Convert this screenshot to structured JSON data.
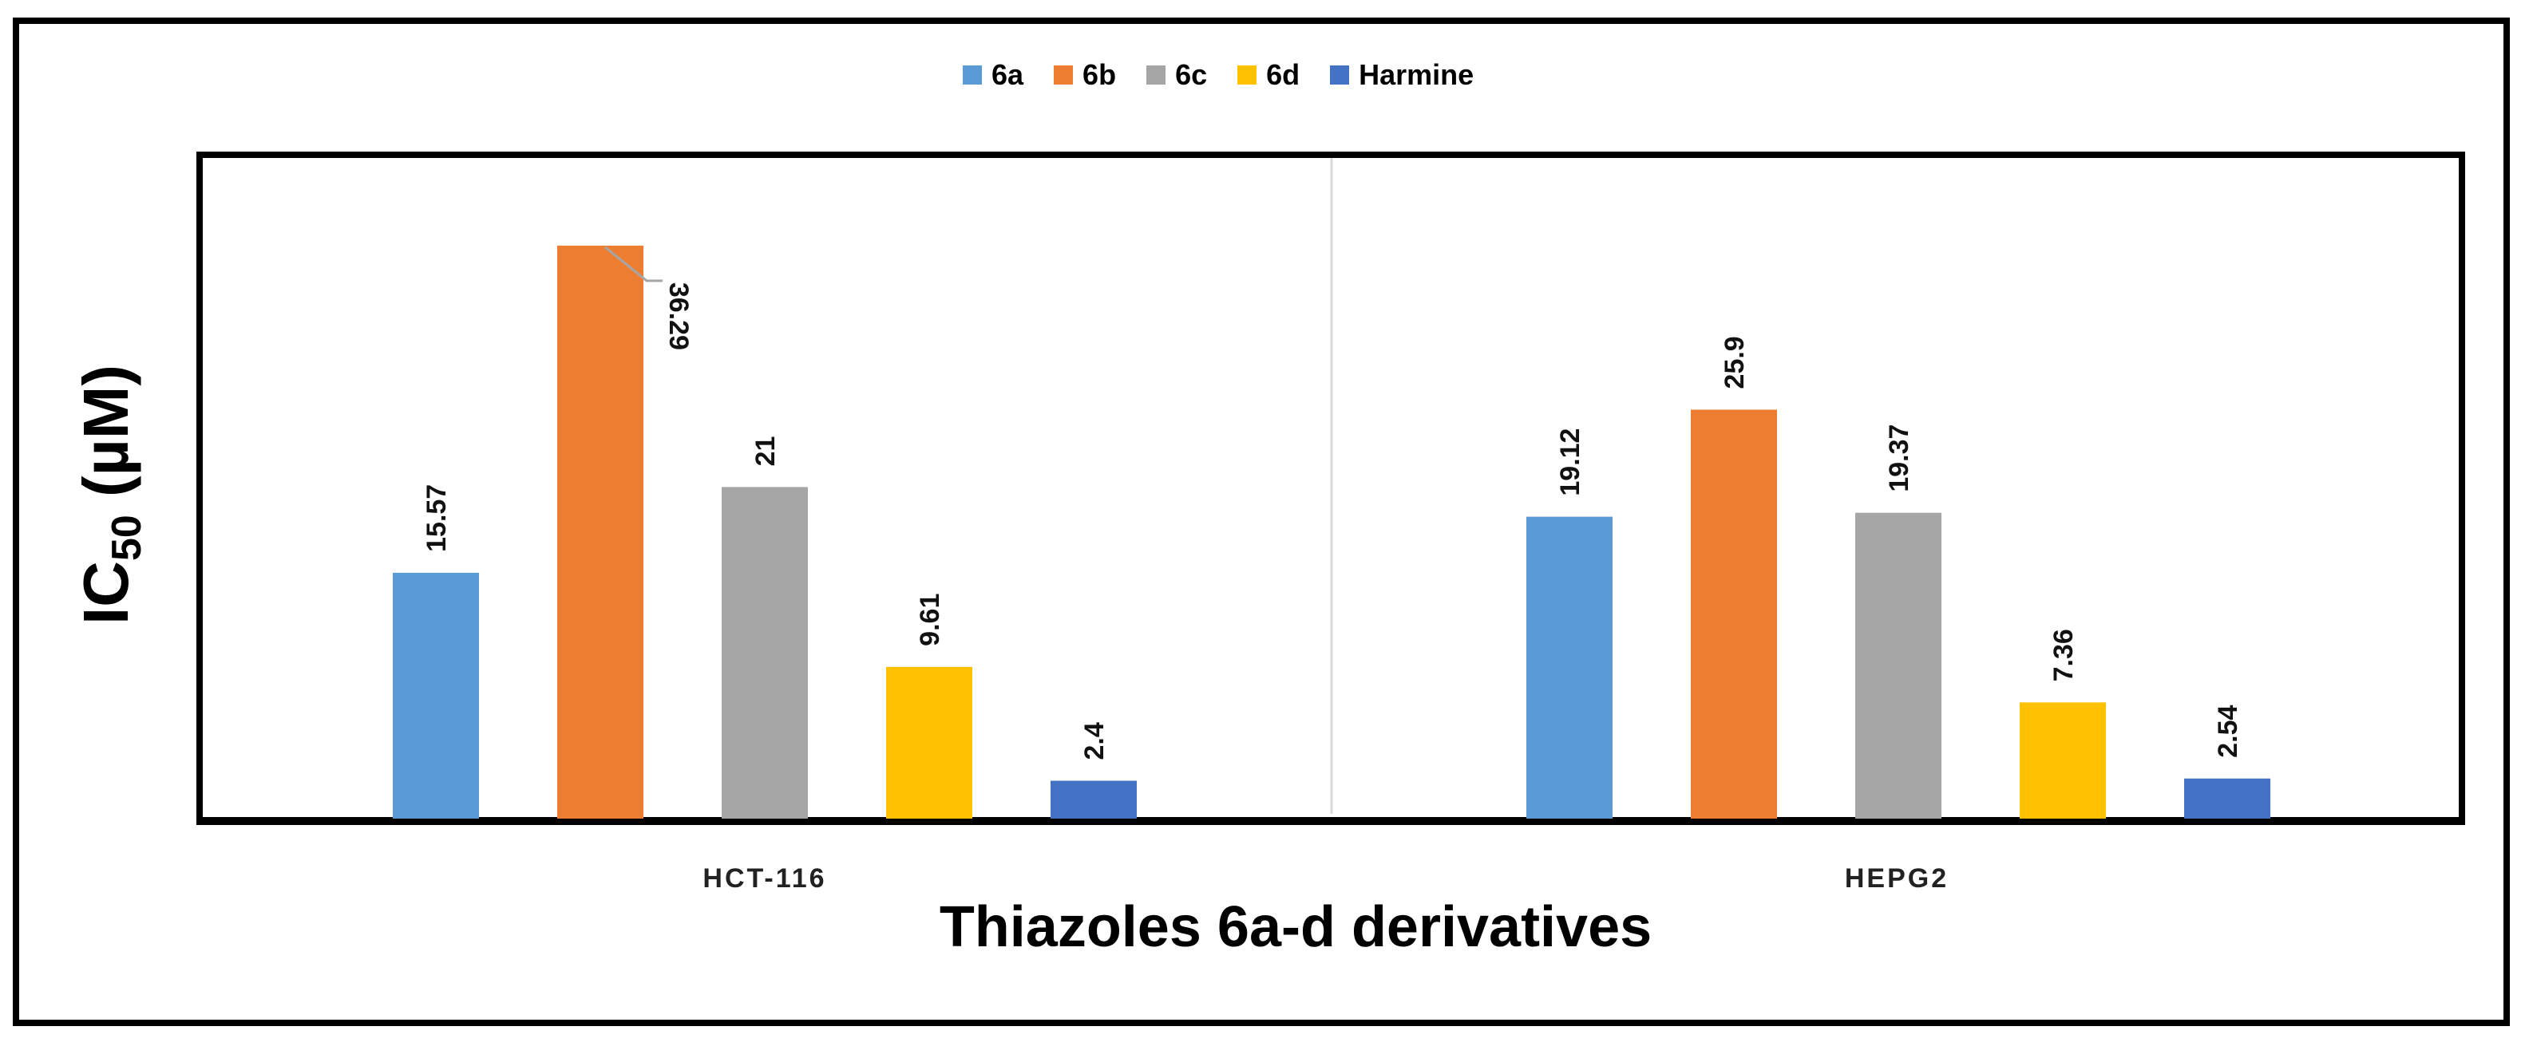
{
  "chart_data": {
    "type": "bar",
    "title": "",
    "xlabel": "Thiazoles 6a-d derivatives",
    "ylabel": "IC50 (µM)",
    "ylabel_main": "IC",
    "ylabel_sub": "50",
    "ylabel_rest": " (µM)",
    "categories": [
      "HCT-116",
      "HEPG2"
    ],
    "ylim": [
      0,
      38
    ],
    "grid": false,
    "legend_position": "top-center",
    "series": [
      {
        "name": "6a",
        "color": "#5B9BD5",
        "values": [
          15.57,
          19.12
        ],
        "labels": [
          "15.57",
          "19.12"
        ]
      },
      {
        "name": "6b",
        "color": "#ED7D31",
        "values": [
          36.29,
          25.9
        ],
        "labels": [
          "36.29",
          "25.9"
        ]
      },
      {
        "name": "6c",
        "color": "#A5A5A5",
        "values": [
          21,
          19.37
        ],
        "labels": [
          "21",
          "19.37"
        ]
      },
      {
        "name": "6d",
        "color": "#FFC000",
        "values": [
          9.61,
          7.36
        ],
        "labels": [
          "9.61",
          "7.36"
        ]
      },
      {
        "name": "Harmine",
        "color": "#4472C4",
        "values": [
          2.4,
          2.54
        ],
        "labels": [
          "2.4",
          "2.54"
        ]
      }
    ]
  }
}
